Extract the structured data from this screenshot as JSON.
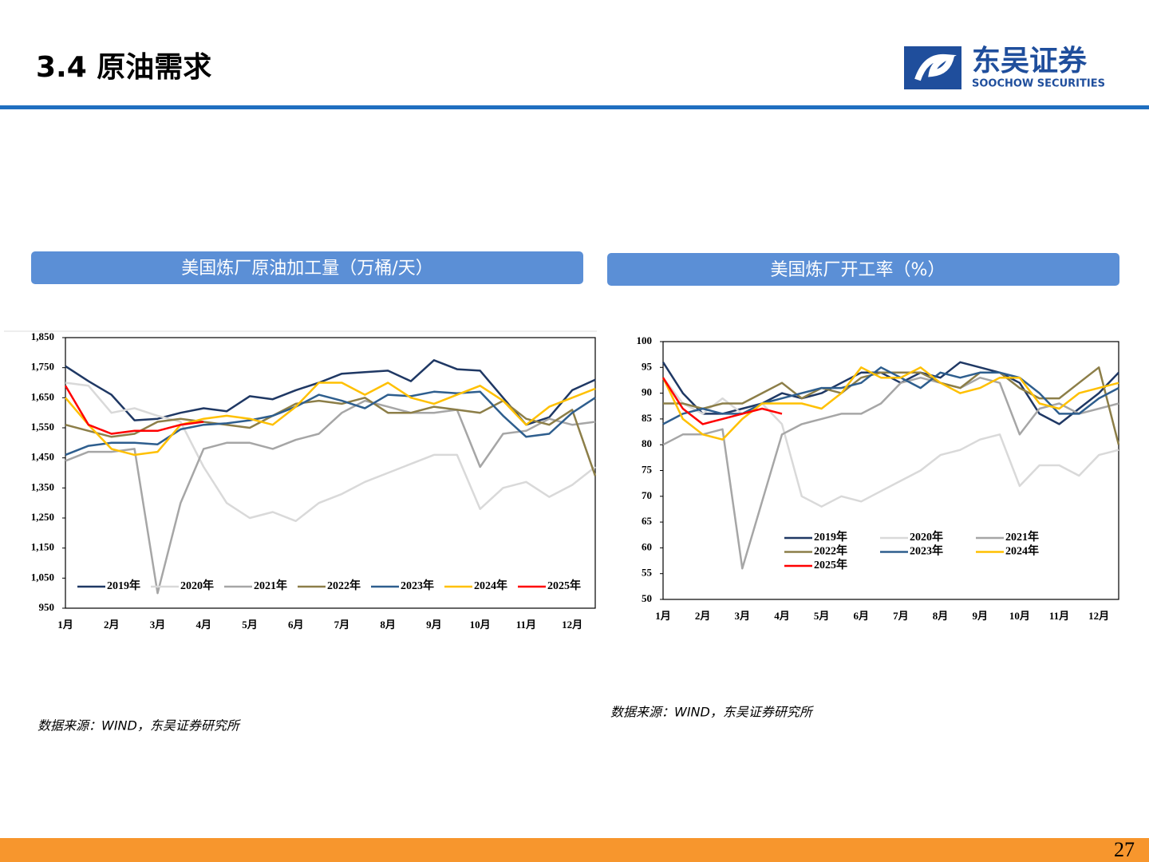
{
  "header": {
    "title": "3.4 原油需求",
    "logo_cn": "东吴证券",
    "logo_en": "SOOCHOW SECURITIES"
  },
  "page_number": "27",
  "sources": [
    "数据来源：WIND，东吴证券研究所",
    "数据来源：WIND，东吴证券研究所"
  ],
  "chart_data": [
    {
      "type": "line",
      "title": "美国炼厂原油加工量（万桶/天）",
      "categories": [
        "1月",
        null,
        "2月",
        null,
        "3月",
        null,
        "4月",
        null,
        "5月",
        null,
        "6月",
        null,
        "7月",
        null,
        "8月",
        null,
        "9月",
        null,
        "10月",
        null,
        "11月",
        null,
        "12月",
        null
      ],
      "ylim": [
        950,
        1850
      ],
      "yticks": [
        950,
        {
          "value": 1050,
          "label": "1,050"
        },
        {
          "value": 1150,
          "label": "1,150"
        },
        {
          "value": 1250,
          "label": "1,250"
        },
        {
          "value": 1350,
          "label": "1,350"
        },
        {
          "value": 1450,
          "label": "1,450"
        },
        {
          "value": 1550,
          "label": "1,550"
        },
        {
          "value": 1650,
          "label": "1,650"
        },
        {
          "value": 1750,
          "label": "1,750"
        },
        {
          "value": 1850,
          "label": "1,850"
        }
      ],
      "legend": "bottom",
      "series": [
        {
          "name": "2019年",
          "color": "#1f3864",
          "values": [
            1755,
            1705,
            1660,
            1575,
            1580,
            1600,
            1615,
            1605,
            1655,
            1645,
            1675,
            1700,
            1730,
            1735,
            1740,
            1705,
            1775,
            1745,
            1740,
            1650,
            1560,
            1585,
            1675,
            1710
          ]
        },
        {
          "name": "2020年",
          "color": "#d9d9d9",
          "values": [
            1700,
            1690,
            1600,
            1615,
            1590,
            1570,
            1420,
            1300,
            1250,
            1270,
            1240,
            1300,
            1330,
            1370,
            1400,
            1430,
            1460,
            1460,
            1280,
            1350,
            1370,
            1320,
            1360,
            1420
          ]
        },
        {
          "name": "2021年",
          "color": "#a6a6a6",
          "values": [
            1440,
            1470,
            1470,
            1480,
            1000,
            1300,
            1480,
            1500,
            1500,
            1480,
            1510,
            1530,
            1600,
            1640,
            1620,
            1600,
            1600,
            1610,
            1420,
            1530,
            1540,
            1580,
            1560,
            1570
          ]
        },
        {
          "name": "2022年",
          "color": "#8c7e48",
          "values": [
            1560,
            1540,
            1520,
            1530,
            1570,
            1580,
            1570,
            1560,
            1550,
            1590,
            1630,
            1640,
            1630,
            1650,
            1600,
            1600,
            1620,
            1610,
            1600,
            1640,
            1580,
            1560,
            1610,
            1390
          ]
        },
        {
          "name": "2023年",
          "color": "#2e5e8e",
          "values": [
            1460,
            1490,
            1500,
            1500,
            1495,
            1545,
            1560,
            1565,
            1575,
            1590,
            1620,
            1660,
            1640,
            1615,
            1660,
            1655,
            1670,
            1665,
            1670,
            1590,
            1520,
            1530,
            1600,
            1650
          ]
        },
        {
          "name": "2024年",
          "color": "#ffc000",
          "values": [
            1650,
            1560,
            1480,
            1460,
            1470,
            1560,
            1580,
            1590,
            1580,
            1560,
            1620,
            1700,
            1700,
            1660,
            1700,
            1650,
            1630,
            1660,
            1690,
            1640,
            1560,
            1620,
            1650,
            1680
          ]
        },
        {
          "name": "2025年",
          "color": "#ff0000",
          "values": [
            1690,
            1560,
            1530,
            1540,
            1540,
            1560,
            1570,
            null,
            null,
            null,
            null,
            null,
            null,
            null,
            null,
            null,
            null,
            null,
            null,
            null,
            null,
            null,
            null,
            null
          ]
        }
      ]
    },
    {
      "type": "line",
      "title": "美国炼厂开工率（%）",
      "categories": [
        "1月",
        null,
        "2月",
        null,
        "3月",
        null,
        "4月",
        null,
        "5月",
        null,
        "6月",
        null,
        "7月",
        null,
        "8月",
        null,
        "9月",
        null,
        "10月",
        null,
        "11月",
        null,
        "12月",
        null
      ],
      "ylim": [
        50,
        100
      ],
      "yticks": [
        50,
        55,
        60,
        65,
        70,
        75,
        80,
        85,
        90,
        95,
        100
      ],
      "legend": "lower left",
      "series": [
        {
          "name": "2019年",
          "color": "#1f3864",
          "values": [
            96,
            90,
            86,
            86,
            87,
            88,
            90,
            89,
            90,
            92,
            94,
            94,
            92,
            94,
            93,
            96,
            95,
            94,
            92,
            86,
            84,
            87,
            90,
            94
          ]
        },
        {
          "name": "2020年",
          "color": "#d9d9d9",
          "values": [
            93,
            88,
            86,
            89,
            86,
            88,
            84,
            70,
            68,
            70,
            69,
            71,
            73,
            75,
            78,
            79,
            81,
            82,
            72,
            76,
            76,
            74,
            78,
            79
          ]
        },
        {
          "name": "2021年",
          "color": "#a6a6a6",
          "values": [
            80,
            82,
            82,
            83,
            56,
            69,
            82,
            84,
            85,
            86,
            86,
            88,
            92,
            93,
            92,
            91,
            93,
            92,
            82,
            87,
            88,
            86,
            87,
            88
          ]
        },
        {
          "name": "2022年",
          "color": "#8c7e48",
          "values": [
            88,
            88,
            87,
            88,
            88,
            90,
            92,
            89,
            91,
            90,
            93,
            94,
            94,
            94,
            92,
            91,
            94,
            94,
            91,
            89,
            89,
            92,
            95,
            80
          ]
        },
        {
          "name": "2023年",
          "color": "#2e5e8e",
          "values": [
            84,
            86,
            87,
            86,
            86,
            88,
            89,
            90,
            91,
            91,
            92,
            95,
            93,
            91,
            94,
            93,
            94,
            94,
            93,
            90,
            86,
            86,
            89,
            91
          ]
        },
        {
          "name": "2024年",
          "color": "#ffc000",
          "values": [
            93,
            85,
            82,
            81,
            85,
            88,
            88,
            88,
            87,
            90,
            95,
            93,
            93,
            95,
            92,
            90,
            91,
            93,
            93,
            88,
            87,
            90,
            91,
            92
          ]
        },
        {
          "name": "2025年",
          "color": "#ff0000",
          "values": [
            93,
            87,
            84,
            85,
            86,
            87,
            86,
            null,
            null,
            null,
            null,
            null,
            null,
            null,
            null,
            null,
            null,
            null,
            null,
            null,
            null,
            null,
            null,
            null
          ]
        }
      ]
    }
  ]
}
